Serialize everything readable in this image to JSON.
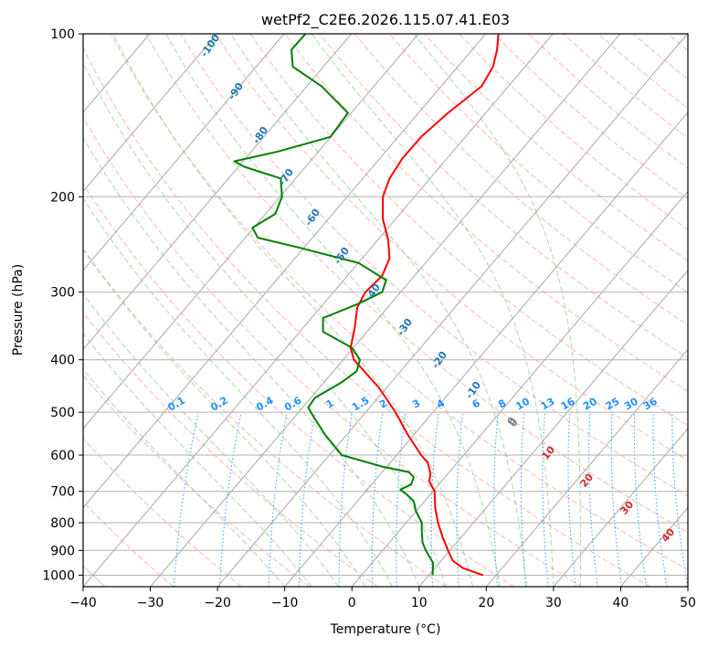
{
  "chart_data": {
    "type": "line",
    "title": "wetPf2_C2E6.2026.115.07.41.E03",
    "xlabel": "Temperature (°C)",
    "ylabel": "Pressure (hPa)",
    "xlim": [
      -40,
      50
    ],
    "ylim": [
      1050,
      100
    ],
    "y_scale": "log",
    "grid": true,
    "x_ticks": [
      "−40",
      "−30",
      "−20",
      "−10",
      "0",
      "10",
      "20",
      "30",
      "40",
      "50"
    ],
    "x_tick_values": [
      -40,
      -30,
      -20,
      -10,
      0,
      10,
      20,
      30,
      40,
      50
    ],
    "y_ticks": [
      "100",
      "200",
      "300",
      "400",
      "500",
      "600",
      "700",
      "800",
      "900",
      "1000"
    ],
    "y_tick_values": [
      100,
      200,
      300,
      400,
      500,
      600,
      700,
      800,
      900,
      1000
    ],
    "colors": {
      "temperature": "#ff0000",
      "dewpoint": "#008000",
      "isotherm": "#999999",
      "dry_adiabat": "#fa8072",
      "moist_adiabat": "#77c077",
      "mixing_ratio": "#1e90ff",
      "dry_label": "#d62728",
      "moist_label": "#1f77b4",
      "mixing_label": "#1e90ff"
    },
    "series": [
      {
        "name": "Temperature",
        "color": "#ff0000",
        "points": [
          [
            1000,
            19.5
          ],
          [
            970,
            16.5
          ],
          [
            940,
            15.0
          ],
          [
            900,
            14.3
          ],
          [
            850,
            13.5
          ],
          [
            800,
            12.8
          ],
          [
            750,
            12.4
          ],
          [
            700,
            12.3
          ],
          [
            670,
            11.5
          ],
          [
            650,
            11.7
          ],
          [
            620,
            11.3
          ],
          [
            600,
            10.3
          ],
          [
            550,
            8.3
          ],
          [
            500,
            6.5
          ],
          [
            450,
            4.0
          ],
          [
            400,
            0.3
          ],
          [
            380,
            -0.2
          ],
          [
            350,
            0.4
          ],
          [
            320,
            0.8
          ],
          [
            300,
            2.0
          ],
          [
            280,
            4.5
          ],
          [
            260,
            5.6
          ],
          [
            240,
            5.4
          ],
          [
            220,
            4.6
          ],
          [
            200,
            4.6
          ],
          [
            185,
            5.6
          ],
          [
            170,
            7.5
          ],
          [
            155,
            10.3
          ],
          [
            140,
            14.3
          ],
          [
            125,
            19.3
          ],
          [
            115,
            21.0
          ],
          [
            107,
            21.6
          ],
          [
            100,
            21.8
          ]
        ]
      },
      {
        "name": "Dewpoint",
        "color": "#008000",
        "points": [
          [
            1000,
            12.0
          ],
          [
            950,
            12.1
          ],
          [
            900,
            11.0
          ],
          [
            870,
            10.5
          ],
          [
            830,
            10.4
          ],
          [
            800,
            10.4
          ],
          [
            760,
            9.5
          ],
          [
            730,
            9.2
          ],
          [
            710,
            8.2
          ],
          [
            695,
            7.2
          ],
          [
            680,
            8.8
          ],
          [
            660,
            9.2
          ],
          [
            645,
            8.5
          ],
          [
            630,
            4.5
          ],
          [
            600,
            -1.5
          ],
          [
            550,
            -4.0
          ],
          [
            510,
            -5.7
          ],
          [
            490,
            -6.5
          ],
          [
            470,
            -5.5
          ],
          [
            440,
            -1.5
          ],
          [
            420,
            0.7
          ],
          [
            400,
            1.2
          ],
          [
            380,
            0.0
          ],
          [
            355,
            -4.3
          ],
          [
            335,
            -4.3
          ],
          [
            315,
            1.0
          ],
          [
            300,
            4.5
          ],
          [
            285,
            5.1
          ],
          [
            265,
            1.0
          ],
          [
            248,
            -8.0
          ],
          [
            238,
            -14.0
          ],
          [
            228,
            -14.8
          ],
          [
            215,
            -11.4
          ],
          [
            200,
            -10.4
          ],
          [
            185,
            -10.6
          ],
          [
            176,
            -16.0
          ],
          [
            172,
            -17.5
          ],
          [
            165,
            -11.0
          ],
          [
            155,
            -3.2
          ],
          [
            140,
            -0.6
          ],
          [
            125,
            -4.5
          ],
          [
            115,
            -8.8
          ],
          [
            107,
            -9.0
          ],
          [
            100,
            -6.9
          ]
        ]
      }
    ],
    "dry_adiabat_labels": [
      "0",
      "10",
      "20",
      "30",
      "40"
    ],
    "moist_adiabat_labels": [
      "-100",
      "-90",
      "-80",
      "-70",
      "-60",
      "-50",
      "-40",
      "-30",
      "-20",
      "-10",
      "0"
    ],
    "mixing_ratio_labels": [
      "0.1",
      "0.2",
      "0.4",
      "0.6",
      "1",
      "1.5",
      "2",
      "3",
      "4",
      "6",
      "8",
      "10",
      "13",
      "16",
      "20",
      "25",
      "30",
      "36"
    ]
  }
}
